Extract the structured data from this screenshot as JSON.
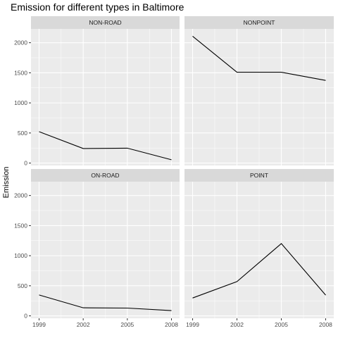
{
  "chart_data": {
    "type": "line",
    "title": "Emission for different types in Baltimore",
    "xlabel": "",
    "ylabel": "Emission",
    "x": [
      1999,
      2002,
      2005,
      2008
    ],
    "xticks": [
      "1999",
      "2002",
      "2005",
      "2008"
    ],
    "yticks": [
      0,
      500,
      1000,
      1500,
      2000
    ],
    "ylim": [
      -40,
      2230
    ],
    "xlim": [
      1998.45,
      2008.55
    ],
    "grid": true,
    "legend": "none",
    "facets": [
      {
        "name": "NON-ROAD",
        "values": [
          522,
          242,
          248,
          55
        ]
      },
      {
        "name": "NONPOINT",
        "values": [
          2108,
          1509,
          1509,
          1373
        ]
      },
      {
        "name": "ON-ROAD",
        "values": [
          347,
          134,
          130,
          88
        ]
      },
      {
        "name": "POINT",
        "values": [
          297,
          570,
          1201,
          345
        ]
      }
    ],
    "colors": {
      "panel_bg": "#ebebeb",
      "strip_bg": "#d9d9d9",
      "grid": "#ffffff",
      "line": "#000000",
      "tick_text": "#4d4d4d"
    }
  }
}
